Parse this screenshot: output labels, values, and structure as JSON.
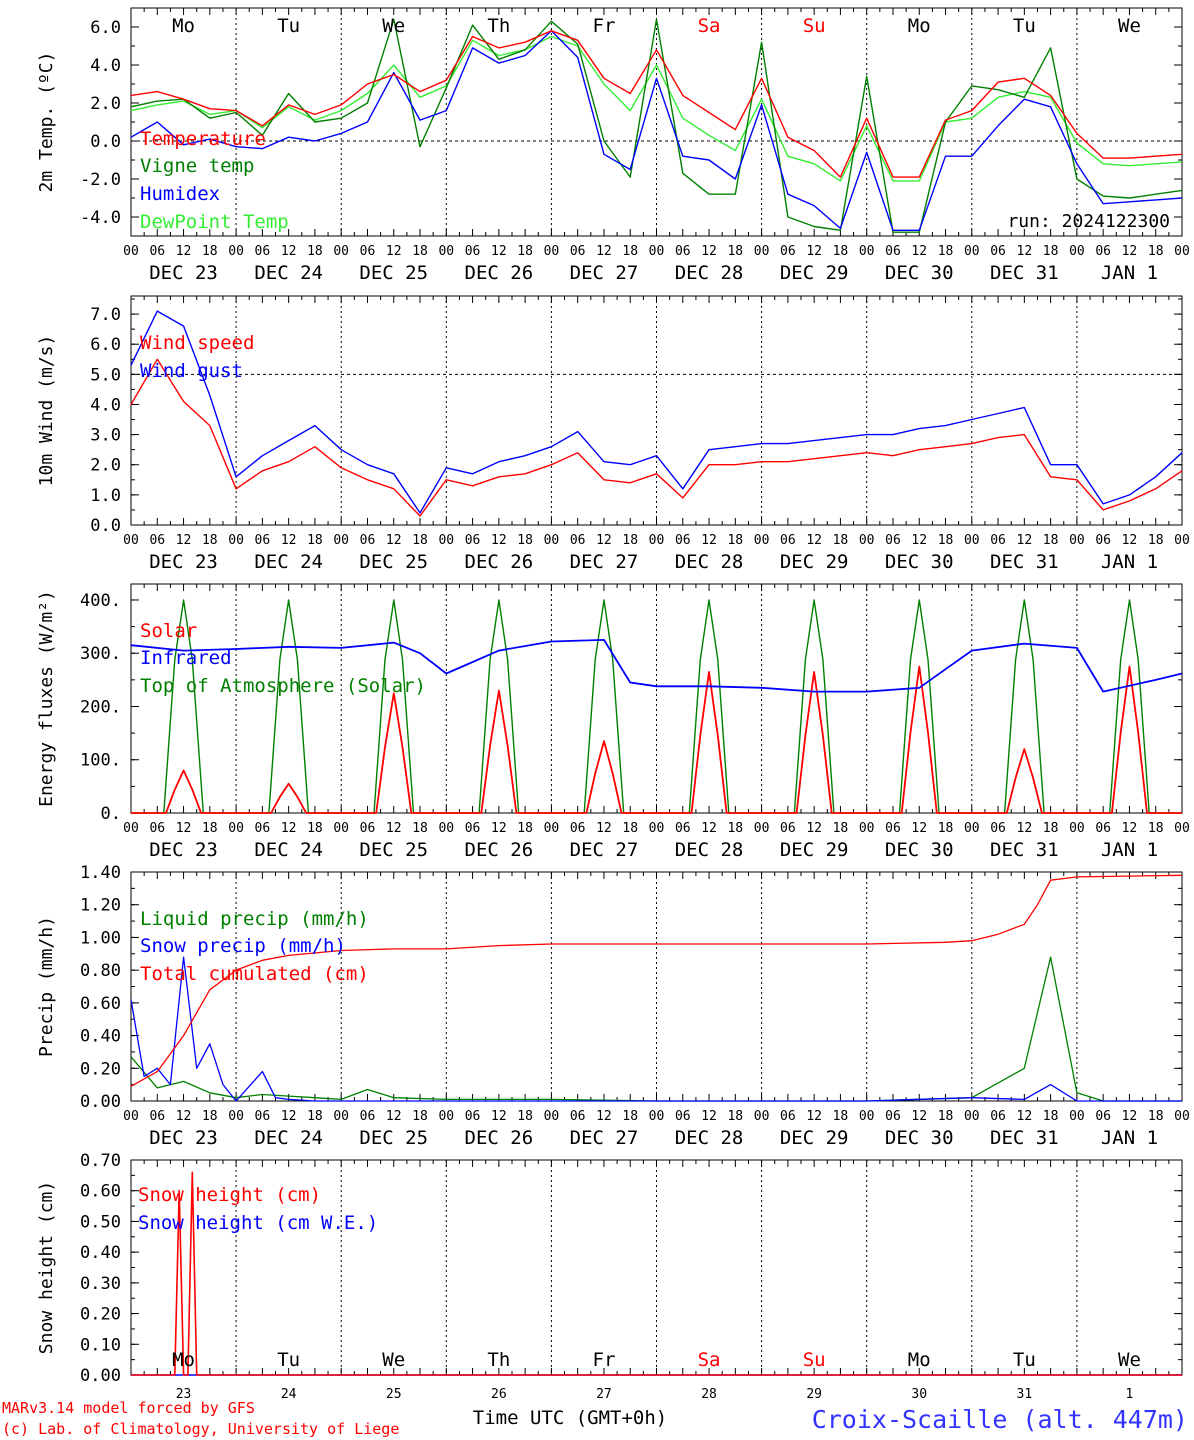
{
  "footer": {
    "model_line": "MARv3.14 model forced by GFS",
    "lab_line": "(c) Lab. of Climatology, University of Liege",
    "time_label": "Time UTC (GMT+0h)",
    "station": "Croix-Scaille (alt. 447m)"
  },
  "colors": {
    "red": "#ff0000",
    "green": "#008000",
    "blue": "#0000ff",
    "lightgreen": "#33ee33",
    "grid": "#000000",
    "station": "#3333ff"
  },
  "hour_ticks": [
    "00",
    "06",
    "12",
    "18"
  ],
  "chart_data": [
    {
      "id": "temperature",
      "type": "line",
      "ylabel": "2m Temp. (ºC)",
      "ylim": [
        -5,
        7
      ],
      "yticks": [
        "6.0",
        "4.0",
        "2.0",
        "0.0",
        "-2.0",
        "-4.0"
      ],
      "ytick_values": [
        6,
        4,
        2,
        0,
        -2,
        -4
      ],
      "day_names": [
        "Mo",
        "Tu",
        "We",
        "Th",
        "Fr",
        "Sa",
        "Su",
        "Mo",
        "Tu",
        "We"
      ],
      "day_colors": [
        "#000000",
        "#000000",
        "#000000",
        "#000000",
        "#000000",
        "#ff0000",
        "#ff0000",
        "#000000",
        "#000000",
        "#000000"
      ],
      "date_labels": [
        "DEC 23",
        "DEC 24",
        "DEC 25",
        "DEC 26",
        "DEC 27",
        "DEC 28",
        "DEC 29",
        "DEC 30",
        "DEC 31",
        "JAN  1"
      ],
      "run_label": "run: 2024122300",
      "ref_line": 0,
      "x_hours": [
        0,
        6,
        12,
        18,
        24,
        30,
        36,
        42,
        48,
        54,
        60,
        66,
        72,
        78,
        84,
        90,
        96,
        102,
        108,
        114,
        120,
        126,
        132,
        138,
        144,
        150,
        156,
        162,
        168,
        174,
        180,
        186,
        192,
        198,
        204,
        210,
        216,
        222,
        228,
        234,
        240
      ],
      "series": [
        {
          "name": "Temperature",
          "color": "#ff0000",
          "values": [
            2.4,
            2.6,
            2.2,
            1.7,
            1.6,
            0.8,
            1.9,
            1.4,
            1.9,
            3.0,
            3.5,
            2.6,
            3.2,
            5.5,
            4.9,
            5.2,
            5.8,
            5.3,
            3.3,
            2.5,
            4.8,
            2.4,
            1.5,
            0.6,
            3.3,
            0.2,
            -0.5,
            -1.9,
            1.2,
            -1.9,
            -1.9,
            1.1,
            1.6,
            3.1,
            3.3,
            2.4,
            0.4,
            -0.9,
            -0.9,
            -0.8,
            -0.7
          ]
        },
        {
          "name": "Vigne temp",
          "color": "#008000",
          "values": [
            1.8,
            2.1,
            2.2,
            1.2,
            1.5,
            0.3,
            2.5,
            1.0,
            1.2,
            2.0,
            6.4,
            -0.3,
            2.8,
            6.1,
            4.3,
            4.8,
            6.3,
            5.1,
            0.0,
            -1.9,
            6.4,
            -1.7,
            -2.8,
            -2.8,
            5.2,
            -4.0,
            -4.5,
            -4.7,
            3.4,
            -4.8,
            -4.8,
            1.0,
            2.9,
            2.7,
            2.3,
            4.9,
            -2.0,
            -2.9,
            -3.0,
            -2.8,
            -2.6
          ]
        },
        {
          "name": "Humidex",
          "color": "#0000ff",
          "values": [
            0.2,
            1.0,
            -0.2,
            0.1,
            -0.3,
            -0.4,
            0.2,
            0.0,
            0.4,
            1.0,
            3.6,
            1.1,
            1.6,
            4.9,
            4.1,
            4.5,
            5.8,
            4.4,
            -0.7,
            -1.5,
            3.3,
            -0.8,
            -1.0,
            -2.0,
            1.9,
            -2.8,
            -3.4,
            -4.6,
            -0.6,
            -4.7,
            -4.7,
            -0.8,
            -0.8,
            0.8,
            2.2,
            1.8,
            -1.2,
            -3.3,
            -3.2,
            -3.1,
            -3.0
          ]
        },
        {
          "name": "DewPoint Temp",
          "color": "#33ee33",
          "values": [
            1.6,
            1.9,
            2.1,
            1.4,
            1.6,
            0.7,
            1.8,
            1.1,
            1.6,
            2.5,
            4.0,
            2.3,
            2.9,
            5.3,
            4.5,
            4.8,
            5.5,
            5.0,
            3.0,
            1.6,
            4.0,
            1.2,
            0.3,
            -0.5,
            2.2,
            -0.8,
            -1.2,
            -2.1,
            0.8,
            -2.1,
            -2.1,
            1.0,
            1.2,
            2.3,
            2.6,
            2.3,
            -0.1,
            -1.2,
            -1.3,
            -1.2,
            -1.1
          ]
        }
      ]
    },
    {
      "id": "wind",
      "type": "line",
      "ylabel": "10m Wind (m/s)",
      "ylim": [
        0,
        7.6
      ],
      "yticks": [
        "7.0",
        "6.0",
        "5.0",
        "4.0",
        "3.0",
        "2.0",
        "1.0",
        "0.0"
      ],
      "ytick_values": [
        7,
        6,
        5,
        4,
        3,
        2,
        1,
        0
      ],
      "date_labels": [
        "DEC 23",
        "DEC 24",
        "DEC 25",
        "DEC 26",
        "DEC 27",
        "DEC 28",
        "DEC 29",
        "DEC 30",
        "DEC 31",
        "JAN  1"
      ],
      "ref_line": 5.0,
      "x_hours": [
        0,
        6,
        12,
        18,
        24,
        30,
        36,
        42,
        48,
        54,
        60,
        66,
        72,
        78,
        84,
        90,
        96,
        102,
        108,
        114,
        120,
        126,
        132,
        138,
        144,
        150,
        156,
        162,
        168,
        174,
        180,
        186,
        192,
        198,
        204,
        210,
        216,
        222,
        228,
        234,
        240
      ],
      "series": [
        {
          "name": "Wind speed",
          "color": "#ff0000",
          "values": [
            4.0,
            5.5,
            4.1,
            3.3,
            1.2,
            1.8,
            2.1,
            2.6,
            1.9,
            1.5,
            1.2,
            0.3,
            1.5,
            1.3,
            1.6,
            1.7,
            2.0,
            2.4,
            1.5,
            1.4,
            1.7,
            0.9,
            2.0,
            2.0,
            2.1,
            2.1,
            2.2,
            2.3,
            2.4,
            2.3,
            2.5,
            2.6,
            2.7,
            2.9,
            3.0,
            1.6,
            1.5,
            0.5,
            0.8,
            1.2,
            1.8
          ]
        },
        {
          "name": "Wind gust",
          "color": "#0000ff",
          "values": [
            5.3,
            7.1,
            6.6,
            4.3,
            1.6,
            2.3,
            2.8,
            3.3,
            2.5,
            2.0,
            1.7,
            0.4,
            1.9,
            1.7,
            2.1,
            2.3,
            2.6,
            3.1,
            2.1,
            2.0,
            2.3,
            1.2,
            2.5,
            2.6,
            2.7,
            2.7,
            2.8,
            2.9,
            3.0,
            3.0,
            3.2,
            3.3,
            3.5,
            3.7,
            3.9,
            2.0,
            2.0,
            0.7,
            1.0,
            1.6,
            2.4
          ]
        }
      ]
    },
    {
      "id": "energy",
      "type": "line",
      "ylabel": "Energy fluxes (W/m²)",
      "ylim": [
        0,
        430
      ],
      "yticks": [
        "400.",
        "300.",
        "200.",
        "100.",
        "0."
      ],
      "ytick_values": [
        400,
        300,
        200,
        100,
        0
      ],
      "date_labels": [
        "DEC 23",
        "DEC 24",
        "DEC 25",
        "DEC 26",
        "DEC 27",
        "DEC 28",
        "DEC 29",
        "DEC 30",
        "DEC 31",
        "JAN  1"
      ],
      "day_peaks_solar": [
        80,
        55,
        225,
        230,
        135,
        265,
        265,
        275,
        120,
        275
      ],
      "toa_peak": 400,
      "series": [
        {
          "name": "Solar",
          "color": "#ff0000"
        },
        {
          "name": "Infrared",
          "color": "#0000ff",
          "x_hours": [
            0,
            12,
            24,
            36,
            48,
            60,
            66,
            72,
            84,
            96,
            108,
            114,
            120,
            132,
            144,
            156,
            168,
            180,
            186,
            192,
            204,
            216,
            222,
            234,
            240
          ],
          "values": [
            315,
            305,
            308,
            312,
            310,
            320,
            300,
            262,
            305,
            322,
            325,
            245,
            238,
            238,
            235,
            228,
            228,
            235,
            270,
            305,
            318,
            310,
            228,
            250,
            262
          ]
        },
        {
          "name": "Top of Atmosphere (Solar)",
          "color": "#008000"
        }
      ]
    },
    {
      "id": "precip",
      "type": "line",
      "ylabel": "Precip (mm/h)",
      "ylim": [
        0,
        1.4
      ],
      "yticks": [
        "1.40",
        "1.20",
        "1.00",
        "0.80",
        "0.60",
        "0.40",
        "0.20",
        "0.00"
      ],
      "ytick_values": [
        1.4,
        1.2,
        1.0,
        0.8,
        0.6,
        0.4,
        0.2,
        0.0
      ],
      "date_labels": [
        "DEC 23",
        "DEC 24",
        "DEC 25",
        "DEC 26",
        "DEC 27",
        "DEC 28",
        "DEC 29",
        "DEC 30",
        "DEC 31",
        "JAN  1"
      ],
      "series": [
        {
          "name": "Liquid precip (mm/h)",
          "color": "#008000",
          "x_hours": [
            0,
            6,
            12,
            18,
            24,
            30,
            36,
            42,
            48,
            54,
            60,
            72,
            96,
            120,
            144,
            168,
            192,
            204,
            210,
            216,
            222,
            228,
            240
          ],
          "values": [
            0.27,
            0.08,
            0.12,
            0.05,
            0.02,
            0.04,
            0.03,
            0.02,
            0.01,
            0.07,
            0.02,
            0.01,
            0.01,
            0.0,
            0.0,
            0.0,
            0.02,
            0.2,
            0.88,
            0.05,
            0.0,
            0.0,
            0.0
          ]
        },
        {
          "name": "Snow precip (mm/h)",
          "color": "#0000ff",
          "x_hours": [
            0,
            3,
            6,
            9,
            12,
            15,
            18,
            21,
            24,
            30,
            33,
            36,
            42,
            48,
            60,
            72,
            96,
            120,
            144,
            168,
            192,
            204,
            210,
            216,
            240
          ],
          "values": [
            0.62,
            0.15,
            0.2,
            0.1,
            0.88,
            0.2,
            0.35,
            0.1,
            0.0,
            0.18,
            0.02,
            0.01,
            0.0,
            0.0,
            0.0,
            0.0,
            0.0,
            0.0,
            0.0,
            0.0,
            0.02,
            0.01,
            0.1,
            0.0,
            0.0
          ]
        },
        {
          "name": "Total cumulated (cm)",
          "color": "#ff0000",
          "x_hours": [
            0,
            6,
            12,
            18,
            24,
            30,
            36,
            48,
            60,
            72,
            84,
            96,
            108,
            120,
            144,
            168,
            186,
            192,
            198,
            204,
            207,
            210,
            216,
            240
          ],
          "values": [
            0.09,
            0.18,
            0.4,
            0.68,
            0.8,
            0.86,
            0.89,
            0.92,
            0.93,
            0.93,
            0.95,
            0.96,
            0.96,
            0.96,
            0.96,
            0.96,
            0.97,
            0.98,
            1.02,
            1.08,
            1.2,
            1.35,
            1.37,
            1.38
          ]
        }
      ]
    },
    {
      "id": "snow",
      "type": "line",
      "ylabel": "Snow height (cm)",
      "ylim": [
        0,
        0.7
      ],
      "yticks": [
        "0.70",
        "0.60",
        "0.50",
        "0.40",
        "0.30",
        "0.20",
        "0.10",
        "0.00"
      ],
      "ytick_values": [
        0.7,
        0.6,
        0.5,
        0.4,
        0.3,
        0.2,
        0.1,
        0.0
      ],
      "day_names": [
        "Mo",
        "Tu",
        "We",
        "Th",
        "Fr",
        "Sa",
        "Su",
        "Mo",
        "Tu",
        "We"
      ],
      "day_colors": [
        "#000000",
        "#000000",
        "#000000",
        "#000000",
        "#000000",
        "#ff0000",
        "#ff0000",
        "#000000",
        "#000000",
        "#000000"
      ],
      "day_numbers": [
        "23",
        "24",
        "25",
        "26",
        "27",
        "28",
        "29",
        "30",
        "31",
        "1"
      ],
      "series": [
        {
          "name": "Snow height (cm)",
          "color": "#ff0000",
          "x_hours": [
            0,
            10,
            11,
            12,
            13,
            14,
            15,
            16,
            240
          ],
          "values": [
            0,
            0,
            0.6,
            0,
            0,
            0.66,
            0,
            0,
            0
          ]
        },
        {
          "name": "Snow height (cm W.E.)",
          "color": "#0000ff",
          "x_hours": [
            0,
            240
          ],
          "values": [
            0,
            0
          ]
        }
      ]
    }
  ]
}
